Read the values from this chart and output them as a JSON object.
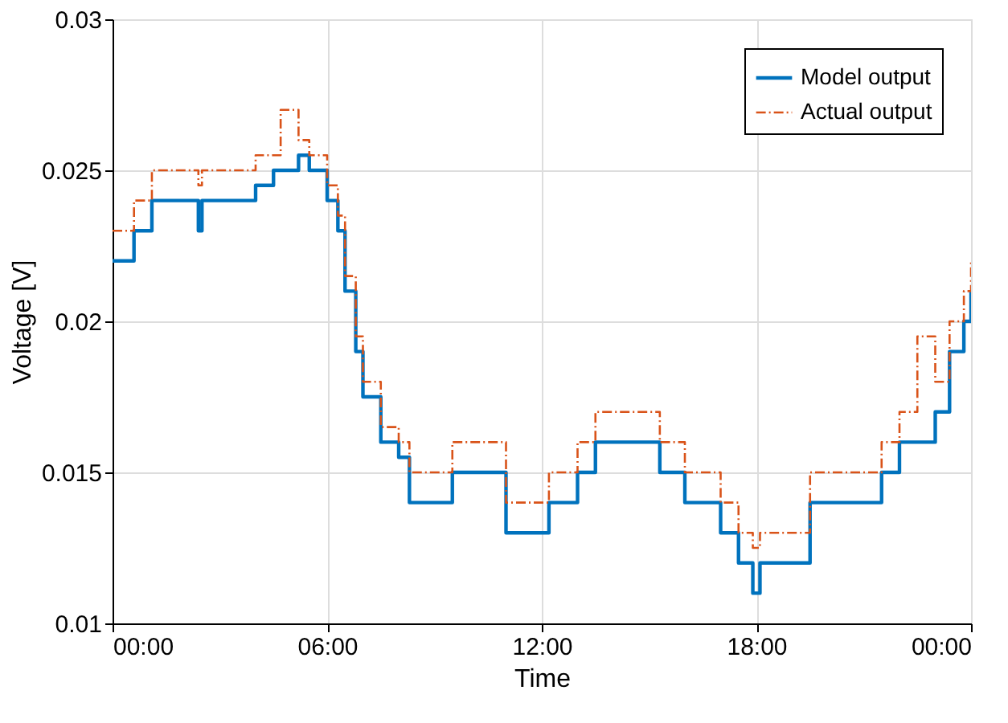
{
  "chart_data": {
    "type": "step",
    "xlabel": "Time",
    "ylabel": "Voltage [V]",
    "xlim": [
      0,
      24
    ],
    "ylim": [
      0.01,
      0.03
    ],
    "xticks": [
      {
        "value": 0,
        "label": "00:00"
      },
      {
        "value": 6,
        "label": "06:00"
      },
      {
        "value": 12,
        "label": "12:00"
      },
      {
        "value": 18,
        "label": "18:00"
      },
      {
        "value": 24,
        "label": "00:00"
      }
    ],
    "yticks": [
      0.01,
      0.015,
      0.02,
      0.025,
      0.03
    ],
    "grid": true,
    "legend": "top right",
    "series": [
      {
        "name": "Model output",
        "color": "#0072bd",
        "line_style": "solid",
        "x": [
          0,
          0.6,
          1.1,
          2.4,
          2.5,
          3.5,
          4.0,
          4.5,
          5.2,
          5.5,
          6.0,
          6.3,
          6.5,
          6.8,
          7.0,
          7.5,
          8.0,
          8.3,
          9.5,
          10.5,
          11.0,
          12.2,
          13.0,
          13.5,
          15.0,
          15.3,
          16.0,
          17.0,
          17.5,
          17.9,
          18.1,
          18.5,
          19.5,
          21.0,
          21.5,
          22.0,
          23.0,
          23.4,
          23.8,
          24
        ],
        "values": [
          0.022,
          0.023,
          0.024,
          0.023,
          0.024,
          0.024,
          0.0245,
          0.025,
          0.0255,
          0.025,
          0.024,
          0.023,
          0.021,
          0.019,
          0.0175,
          0.016,
          0.0155,
          0.014,
          0.015,
          0.015,
          0.013,
          0.014,
          0.015,
          0.016,
          0.016,
          0.015,
          0.014,
          0.013,
          0.012,
          0.011,
          0.012,
          0.012,
          0.014,
          0.014,
          0.015,
          0.016,
          0.017,
          0.019,
          0.02,
          0.021
        ]
      },
      {
        "name": "Actual output",
        "color": "#d95319",
        "line_style": "dashed",
        "x": [
          0,
          0.6,
          1.1,
          2.4,
          2.5,
          3.5,
          4.0,
          4.5,
          4.7,
          5.2,
          5.5,
          6.0,
          6.3,
          6.5,
          6.8,
          7.0,
          7.5,
          8.0,
          8.3,
          9.5,
          10.5,
          11.0,
          12.2,
          13.0,
          13.5,
          15.0,
          15.3,
          16.0,
          17.0,
          17.5,
          17.9,
          18.1,
          18.5,
          19.5,
          21.0,
          21.5,
          22.0,
          22.5,
          23.0,
          23.4,
          23.8,
          24
        ],
        "values": [
          0.023,
          0.024,
          0.025,
          0.0245,
          0.025,
          0.025,
          0.0255,
          0.0255,
          0.027,
          0.026,
          0.0255,
          0.0245,
          0.0235,
          0.0215,
          0.0195,
          0.018,
          0.0165,
          0.016,
          0.015,
          0.016,
          0.016,
          0.014,
          0.015,
          0.016,
          0.017,
          0.017,
          0.016,
          0.015,
          0.014,
          0.013,
          0.0125,
          0.013,
          0.013,
          0.015,
          0.015,
          0.016,
          0.017,
          0.0195,
          0.018,
          0.02,
          0.021,
          0.022
        ]
      }
    ]
  }
}
